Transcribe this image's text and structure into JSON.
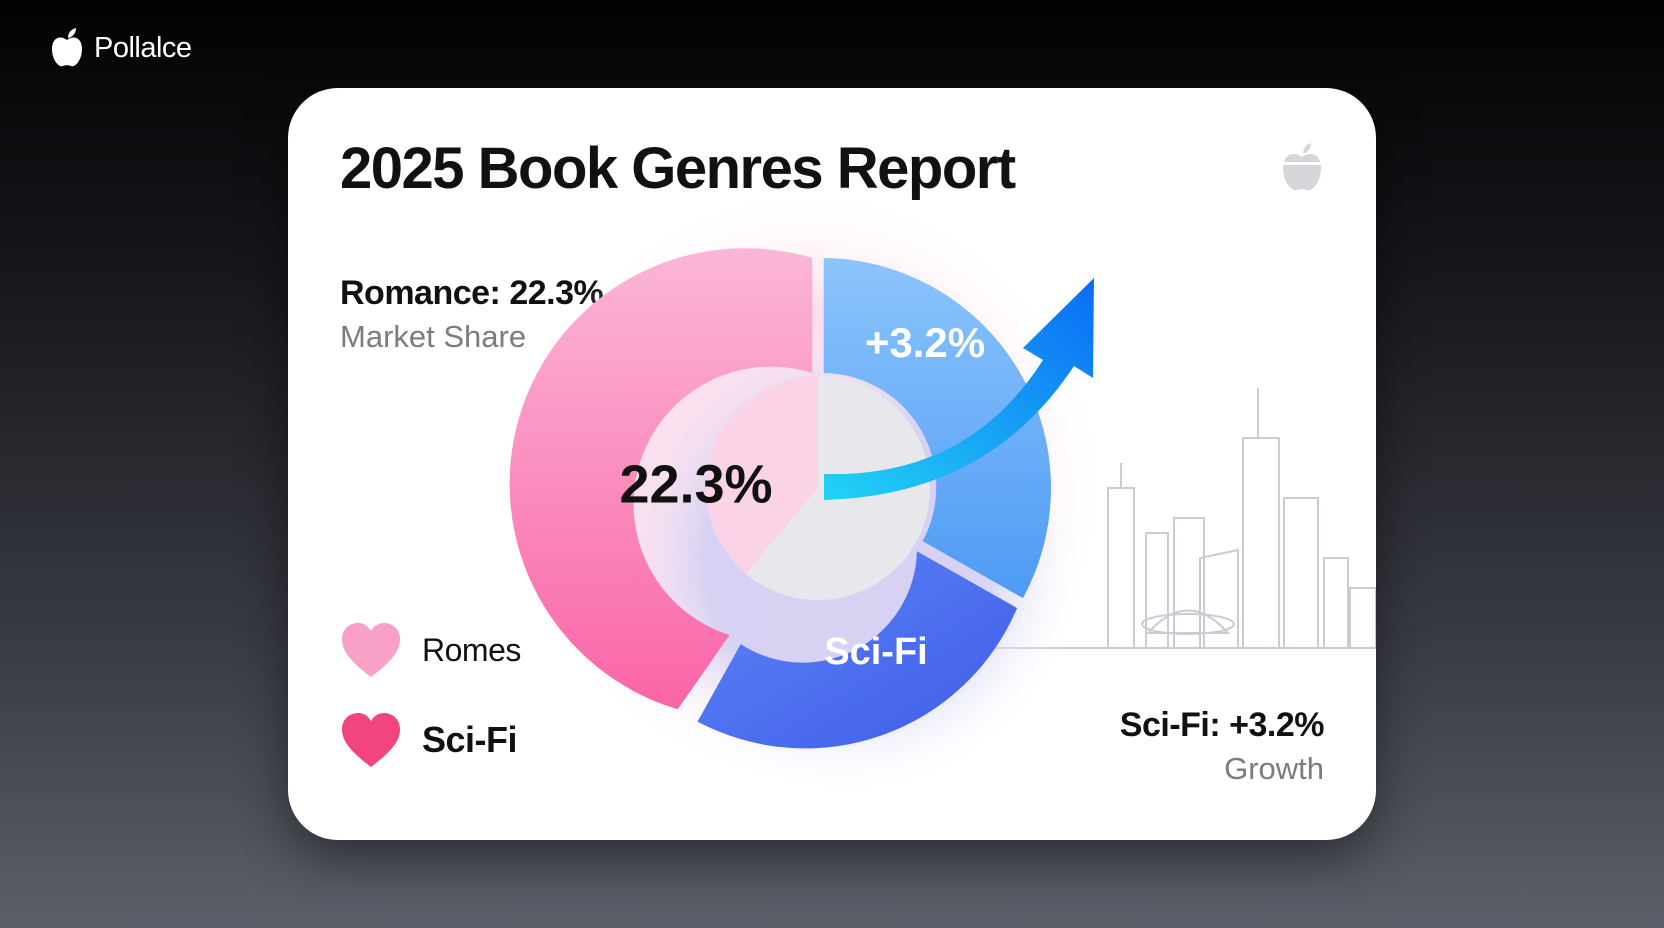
{
  "brand": {
    "name": "Pollalce",
    "icon": "apple-logo-icon"
  },
  "card": {
    "title": "2025 Book Genres Report",
    "logo_icon": "apple-logo-icon",
    "stat_left": {
      "main": "Romance: 22.3%",
      "sub": "Market Share"
    },
    "stat_right": {
      "main": "Sci-Fi: +3.2%",
      "sub": "Growth"
    },
    "legend": [
      {
        "label": "Romes",
        "icon": "heart-icon",
        "color": "#f8a0c8"
      },
      {
        "label": "Sci-Fi",
        "icon": "heart-icon",
        "color": "#f0457f"
      }
    ]
  },
  "colors": {
    "romance": "#fa72ad",
    "scifi": "#4d6ff0",
    "growth": "#6fb0fa",
    "arrow": "#1a8cff",
    "skyline": "#c8cbd3"
  },
  "chart_data": {
    "type": "pie",
    "title": "2025 Book Genres Report",
    "series": [
      {
        "name": "Romance",
        "label": "22.3%",
        "value": 22.3
      },
      {
        "name": "Sci-Fi",
        "label": "Sci-Fi"
      },
      {
        "name": "Growth",
        "label": "+3.2%",
        "value": 3.2
      }
    ],
    "annotations": [
      "Romance: 22.3%",
      "Market Share",
      "Sci-Fi: +3.2%",
      "Growth"
    ]
  }
}
